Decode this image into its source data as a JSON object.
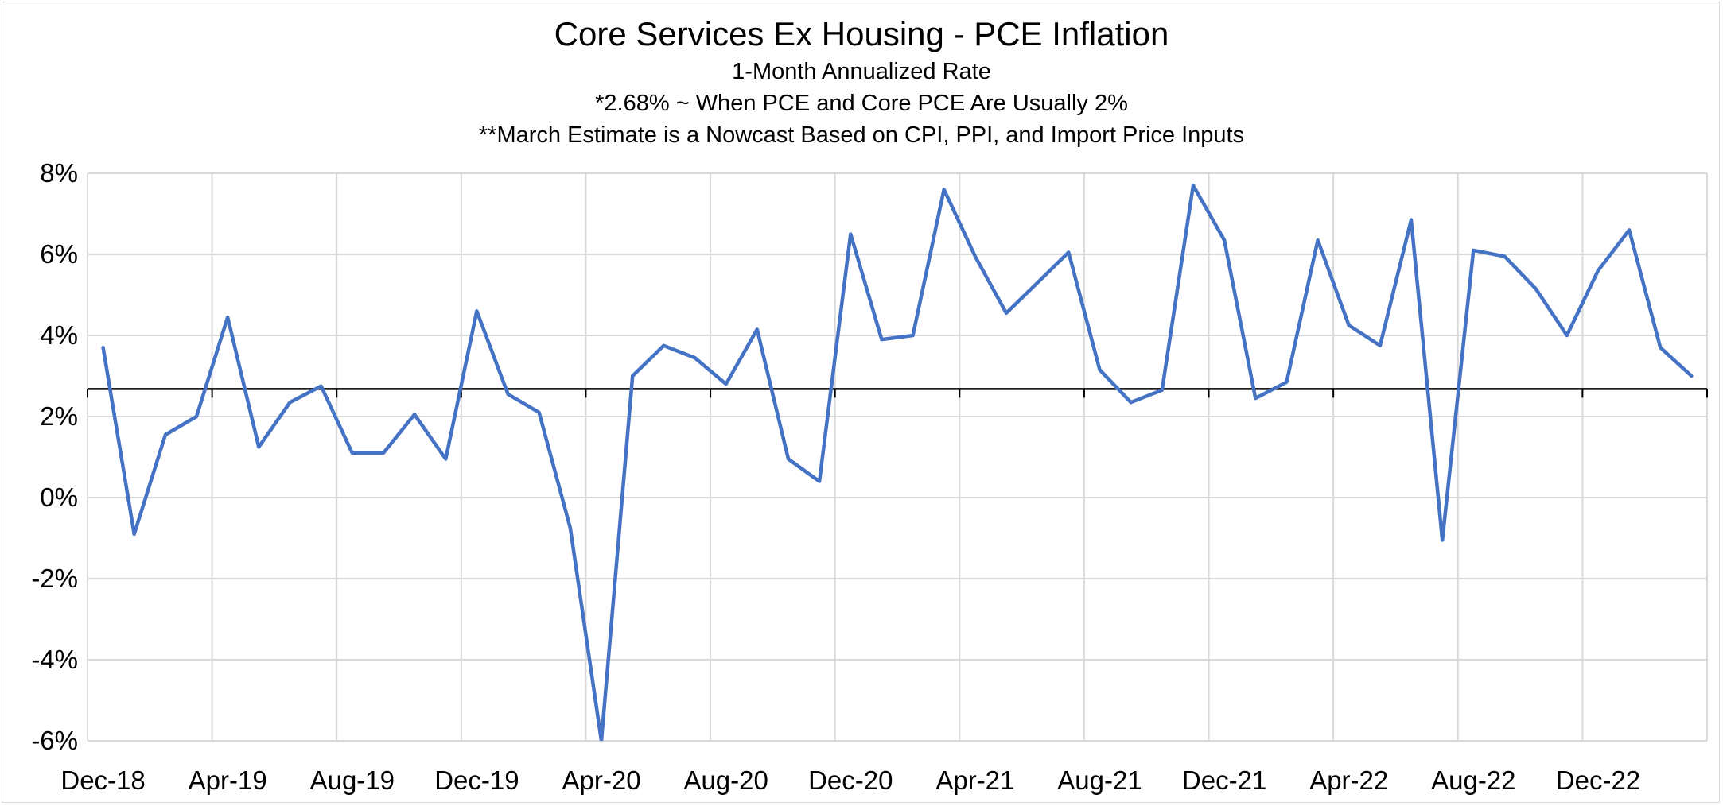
{
  "chart_data": {
    "type": "line",
    "title": "Core Services Ex Housing - PCE Inflation",
    "subtitles": [
      "1-Month Annualized Rate",
      "*2.68% ~ When PCE and Core PCE Are Usually 2%",
      "**March Estimate is a Nowcast Based on CPI, PPI, and Import Price Inputs"
    ],
    "xlabel": "",
    "ylabel": "",
    "ylim": [
      -6,
      8
    ],
    "y_ticks": [
      8,
      6,
      4,
      2,
      0,
      -2,
      -4,
      -6
    ],
    "y_tick_labels": [
      "8%",
      "6%",
      "4%",
      "2%",
      "0%",
      "-2%",
      "-4%",
      "-6%"
    ],
    "x_tick_labels": [
      "Dec-18",
      "Apr-19",
      "Aug-19",
      "Dec-19",
      "Apr-20",
      "Aug-20",
      "Dec-20",
      "Apr-21",
      "Aug-21",
      "Dec-21",
      "Apr-22",
      "Aug-22",
      "Dec-22"
    ],
    "x_tick_every": 4,
    "grid": true,
    "reference_line": {
      "value": 2.68,
      "label": "*2.68%",
      "color": "#000000"
    },
    "series": [
      {
        "name": "Core Services Ex Housing PCE (1-Month Annualized)",
        "color": "#4472C4",
        "categories": [
          "Dec-18",
          "Jan-19",
          "Feb-19",
          "Mar-19",
          "Apr-19",
          "May-19",
          "Jun-19",
          "Jul-19",
          "Aug-19",
          "Sep-19",
          "Oct-19",
          "Nov-19",
          "Dec-19",
          "Jan-20",
          "Feb-20",
          "Mar-20",
          "Apr-20",
          "May-20",
          "Jun-20",
          "Jul-20",
          "Aug-20",
          "Sep-20",
          "Oct-20",
          "Nov-20",
          "Dec-20",
          "Jan-21",
          "Feb-21",
          "Mar-21",
          "Apr-21",
          "May-21",
          "Jun-21",
          "Jul-21",
          "Aug-21",
          "Sep-21",
          "Oct-21",
          "Nov-21",
          "Dec-21",
          "Jan-22",
          "Feb-22",
          "Mar-22",
          "Apr-22",
          "May-22",
          "Jun-22",
          "Jul-22",
          "Aug-22",
          "Sep-22",
          "Oct-22",
          "Nov-22",
          "Dec-22",
          "Jan-23",
          "Feb-23",
          "Mar-23"
        ],
        "values": [
          3.7,
          -0.9,
          1.55,
          2.0,
          4.45,
          1.25,
          2.35,
          2.75,
          1.1,
          1.1,
          2.05,
          0.95,
          4.6,
          2.55,
          2.1,
          -0.75,
          -6.0,
          3.0,
          3.75,
          3.45,
          2.8,
          4.15,
          0.95,
          0.4,
          6.5,
          3.9,
          4.0,
          7.6,
          5.95,
          4.55,
          5.3,
          6.05,
          3.15,
          2.35,
          2.65,
          7.7,
          6.35,
          2.45,
          2.85,
          6.35,
          4.25,
          3.75,
          6.85,
          -1.05,
          6.1,
          5.95,
          5.15,
          4.0,
          5.6,
          6.6,
          3.7,
          3.0
        ]
      }
    ]
  }
}
